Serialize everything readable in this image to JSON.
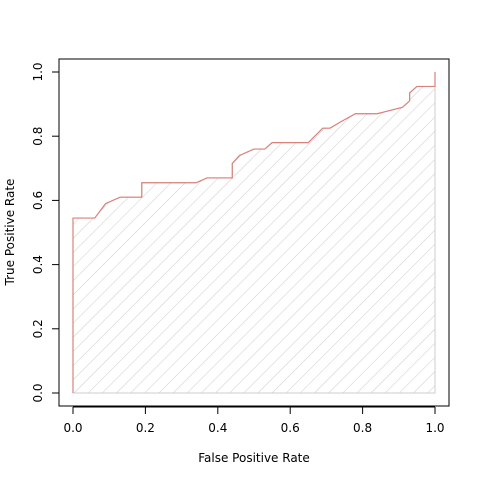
{
  "chart_data": {
    "type": "area",
    "title": "",
    "xlabel": "False Positive Rate",
    "ylabel": "True Positive Rate",
    "xlim": [
      0.0,
      1.0
    ],
    "ylim": [
      0.0,
      1.0
    ],
    "x_ticks": [
      "0.0",
      "0.2",
      "0.4",
      "0.6",
      "0.8",
      "1.0"
    ],
    "y_ticks": [
      "0.0",
      "0.2",
      "0.4",
      "0.6",
      "0.8",
      "1.0"
    ],
    "grid": false,
    "legend": "none",
    "fill_pattern": "diagonal-hatch",
    "colors": {
      "curve": "#d9827d",
      "hatch": "#cccccc",
      "axes": "#000000"
    },
    "series": [
      {
        "x": [
          0.0,
          0.0,
          0.06,
          0.09,
          0.13,
          0.19,
          0.19,
          0.34,
          0.37,
          0.44,
          0.44,
          0.46,
          0.5,
          0.53,
          0.55,
          0.65,
          0.69,
          0.71,
          0.74,
          0.78,
          0.84,
          0.91,
          0.93,
          0.93,
          0.95,
          1.0,
          1.0
        ],
        "y": [
          0.0,
          0.545,
          0.545,
          0.59,
          0.61,
          0.61,
          0.655,
          0.655,
          0.67,
          0.67,
          0.715,
          0.74,
          0.76,
          0.76,
          0.78,
          0.78,
          0.825,
          0.825,
          0.845,
          0.87,
          0.87,
          0.89,
          0.91,
          0.935,
          0.955,
          0.955,
          1.0
        ]
      }
    ]
  }
}
